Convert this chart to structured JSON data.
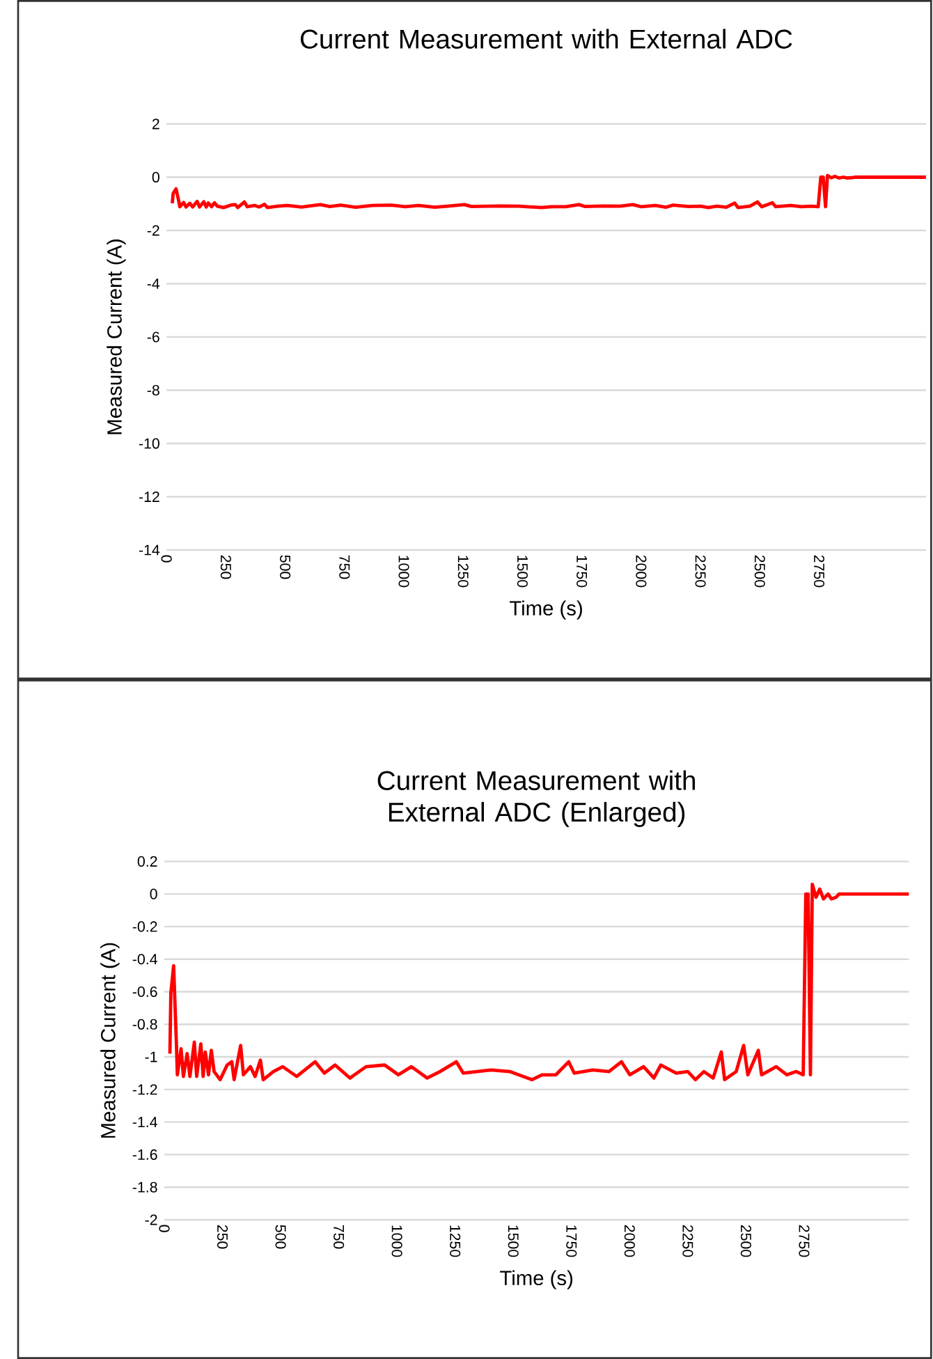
{
  "chart_data": [
    {
      "type": "line",
      "title": "Current Measurement with External ADC",
      "xlabel": "Time (s)",
      "ylabel": "Measured Current (A)",
      "x": [
        24,
        28,
        40,
        52,
        56,
        72,
        82,
        98,
        110,
        129,
        139,
        157,
        167,
        176,
        190,
        202,
        214,
        240,
        270,
        290,
        300,
        328,
        340,
        370,
        390,
        413,
        425,
        469,
        509,
        569,
        648,
        688,
        734,
        798,
        867,
        947,
        1006,
        1062,
        1130,
        1185,
        1255,
        1285,
        1404,
        1484,
        1580,
        1623,
        1683,
        1738,
        1762,
        1841,
        1911,
        1965,
        2001,
        2060,
        2104,
        2134,
        2200,
        2250,
        2283,
        2319,
        2359,
        2394,
        2408,
        2458,
        2490,
        2508,
        2553,
        2567,
        2630,
        2676,
        2716,
        2746,
        2757,
        2767,
        2777,
        2785,
        2801,
        2817,
        2833,
        2853,
        2867,
        2887,
        2900,
        3200
      ],
      "series": [
        {
          "color": "#ff0000",
          "values": [
            -0.98,
            -0.61,
            -0.44,
            -0.92,
            -1.11,
            -0.95,
            -1.12,
            -0.98,
            -1.12,
            -0.91,
            -1.12,
            -0.92,
            -1.12,
            -0.97,
            -1.11,
            -0.96,
            -1.09,
            -1.14,
            -1.05,
            -1.03,
            -1.14,
            -0.93,
            -1.11,
            -1.06,
            -1.12,
            -1.02,
            -1.14,
            -1.09,
            -1.06,
            -1.12,
            -1.03,
            -1.1,
            -1.05,
            -1.13,
            -1.06,
            -1.05,
            -1.11,
            -1.06,
            -1.13,
            -1.09,
            -1.03,
            -1.1,
            -1.08,
            -1.09,
            -1.14,
            -1.11,
            -1.11,
            -1.03,
            -1.1,
            -1.08,
            -1.09,
            -1.03,
            -1.11,
            -1.06,
            -1.13,
            -1.05,
            -1.1,
            -1.09,
            -1.14,
            -1.09,
            -1.13,
            -0.97,
            -1.14,
            -1.09,
            -0.93,
            -1.11,
            -0.96,
            -1.11,
            -1.06,
            -1.11,
            -1.09,
            -1.11,
            0.0,
            0.0,
            -1.11,
            0.06,
            -0.02,
            0.03,
            -0.03,
            0.0,
            -0.03,
            -0.02,
            0.0,
            0.0
          ]
        }
      ],
      "xlim": [
        0,
        3200
      ],
      "ylim": [
        -14,
        2
      ],
      "xticks": [
        0,
        250,
        500,
        750,
        1000,
        1250,
        1500,
        1750,
        2000,
        2250,
        2500,
        2750
      ],
      "yticks": [
        -14,
        -12,
        -10,
        -8,
        -6,
        -4,
        -2,
        0,
        2
      ],
      "grid": "y",
      "marker": "none",
      "line_style": "solid"
    },
    {
      "type": "line",
      "title": "Current Measurement with External ADC (Enlarged)",
      "xlabel": "Time (s)",
      "ylabel": "Measured Current (A)",
      "x": [
        24,
        28,
        40,
        52,
        56,
        72,
        82,
        98,
        110,
        129,
        139,
        157,
        167,
        176,
        190,
        202,
        214,
        240,
        270,
        290,
        300,
        328,
        340,
        370,
        390,
        413,
        425,
        469,
        509,
        569,
        648,
        688,
        734,
        798,
        867,
        947,
        1006,
        1062,
        1130,
        1185,
        1255,
        1285,
        1404,
        1484,
        1580,
        1623,
        1683,
        1738,
        1762,
        1841,
        1911,
        1965,
        2001,
        2060,
        2104,
        2134,
        2200,
        2250,
        2283,
        2319,
        2359,
        2394,
        2408,
        2458,
        2490,
        2508,
        2553,
        2567,
        2630,
        2676,
        2716,
        2746,
        2757,
        2767,
        2777,
        2785,
        2801,
        2817,
        2833,
        2853,
        2867,
        2887,
        2900,
        3200
      ],
      "series": [
        {
          "color": "#ff0000",
          "values": [
            -0.98,
            -0.61,
            -0.44,
            -0.92,
            -1.11,
            -0.95,
            -1.12,
            -0.98,
            -1.12,
            -0.91,
            -1.12,
            -0.92,
            -1.12,
            -0.97,
            -1.11,
            -0.96,
            -1.09,
            -1.14,
            -1.05,
            -1.03,
            -1.14,
            -0.93,
            -1.11,
            -1.06,
            -1.12,
            -1.02,
            -1.14,
            -1.09,
            -1.06,
            -1.12,
            -1.03,
            -1.1,
            -1.05,
            -1.13,
            -1.06,
            -1.05,
            -1.11,
            -1.06,
            -1.13,
            -1.09,
            -1.03,
            -1.1,
            -1.08,
            -1.09,
            -1.14,
            -1.11,
            -1.11,
            -1.03,
            -1.1,
            -1.08,
            -1.09,
            -1.03,
            -1.11,
            -1.06,
            -1.13,
            -1.05,
            -1.1,
            -1.09,
            -1.14,
            -1.09,
            -1.13,
            -0.97,
            -1.14,
            -1.09,
            -0.93,
            -1.11,
            -0.96,
            -1.11,
            -1.06,
            -1.11,
            -1.09,
            -1.11,
            0.0,
            0.0,
            -1.11,
            0.06,
            -0.02,
            0.03,
            -0.03,
            0.0,
            -0.03,
            -0.02,
            0.0,
            0.0
          ]
        }
      ],
      "xlim": [
        0,
        3200
      ],
      "ylim": [
        -2,
        0.2
      ],
      "xticks": [
        0,
        250,
        500,
        750,
        1000,
        1250,
        1500,
        1750,
        2000,
        2250,
        2500,
        2750
      ],
      "yticks": [
        -2,
        -1.8,
        -1.6,
        -1.4,
        -1.2,
        -1,
        -0.8,
        -0.6,
        -0.4,
        -0.2,
        0,
        0.2
      ],
      "grid": "y",
      "marker": "none",
      "line_style": "solid"
    }
  ]
}
